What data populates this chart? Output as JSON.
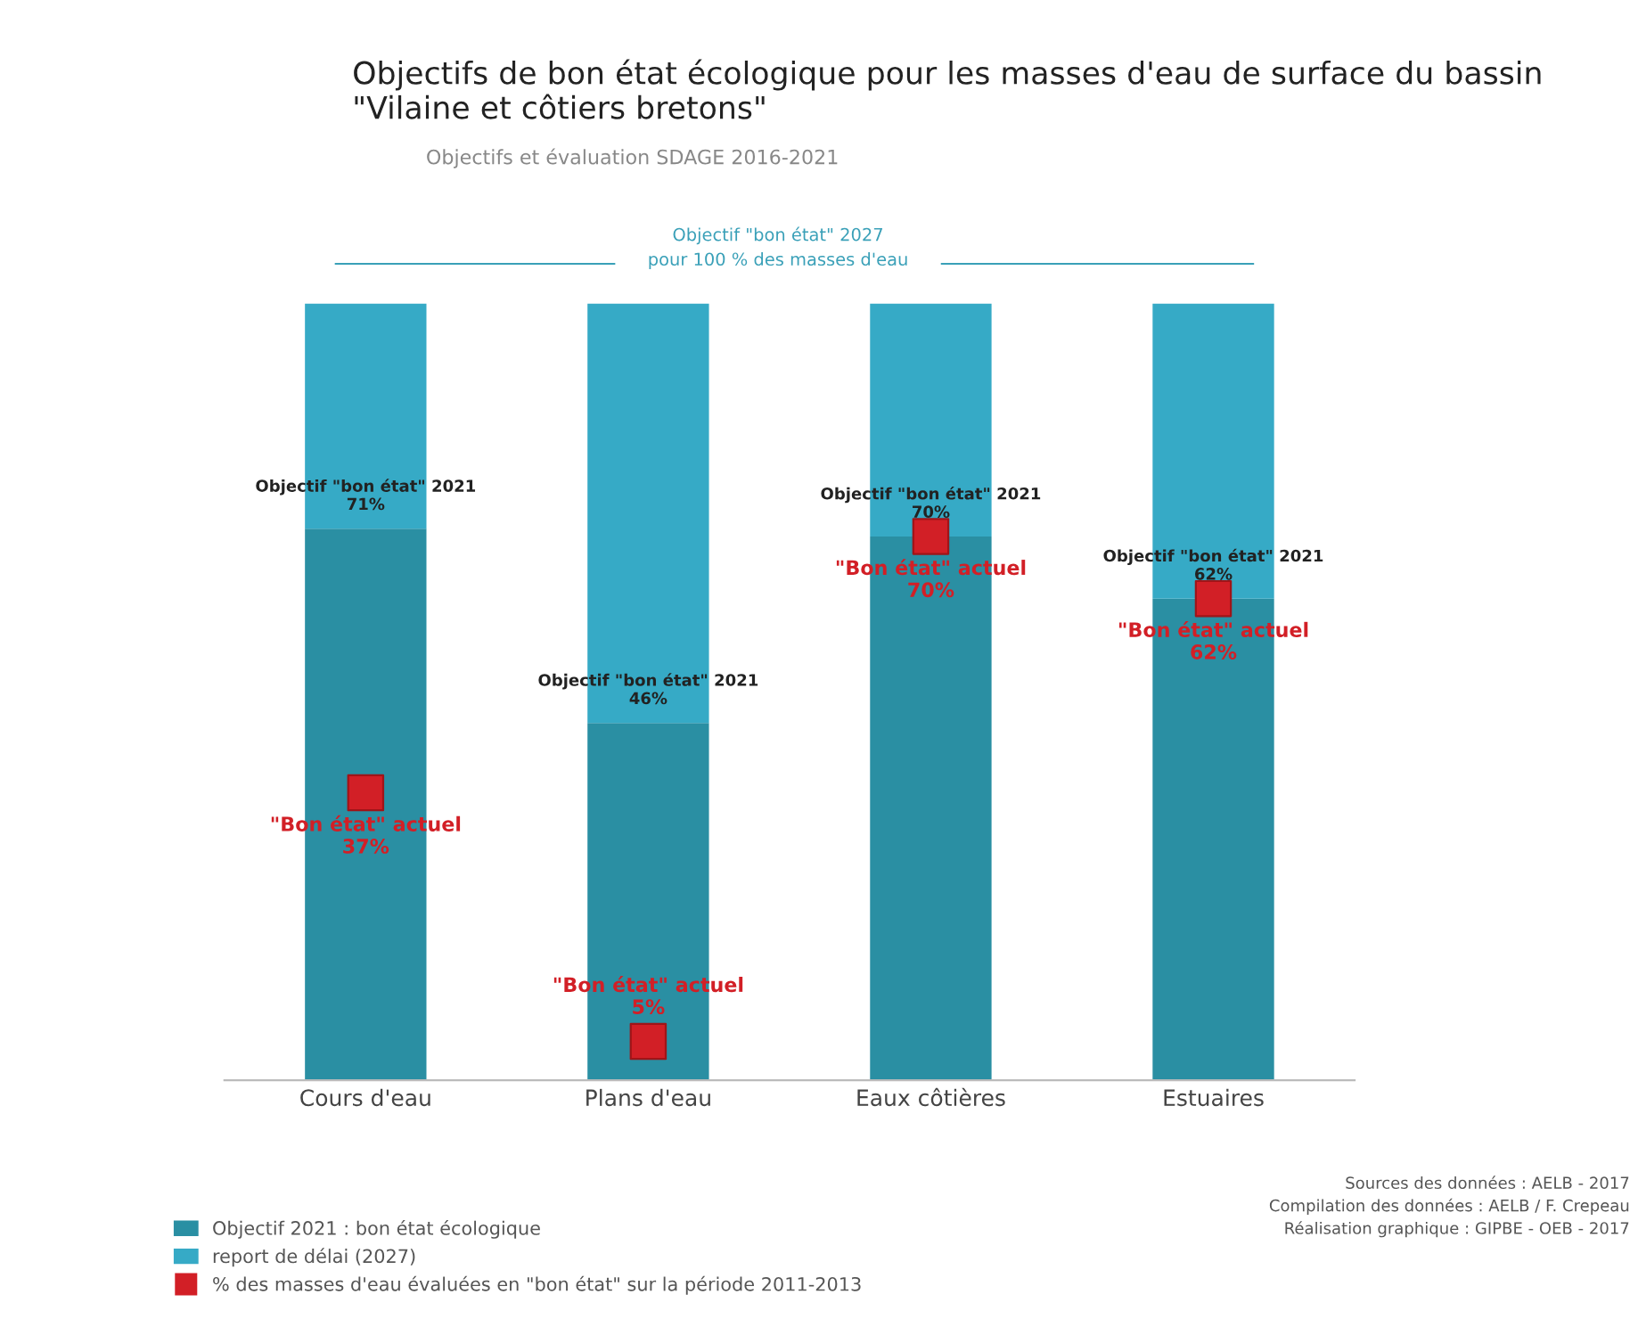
{
  "chart_data": {
    "type": "bar",
    "title": "Objectifs de bon état écologique pour les masses d'eau de surface du bassin\n\"Vilaine et côtiers bretons\"",
    "subtitle": "Objectifs et évaluation SDAGE 2016-2021",
    "categories": [
      "Cours d'eau",
      "Plans d'eau",
      "Eaux côtières",
      "Estuaires"
    ],
    "stacked": true,
    "ylim": [
      0,
      100
    ],
    "tick_labels": "x",
    "grid": false,
    "legend": "bottom left",
    "series": [
      {
        "name": "Objectif 2021 : bon état écologique",
        "color": "#2a8fa3",
        "values": [
          71,
          46,
          70,
          62
        ],
        "value_labels": [
          "Objectif \"bon état\" 2021\n71%",
          "Objectif \"bon état\" 2021\n46%",
          "Objectif \"bon état\" 2021\n70%",
          "Objectif \"bon état\" 2021\n62%"
        ]
      },
      {
        "name": "report de délai (2027)",
        "color": "#36aac6",
        "values": [
          29,
          54,
          30,
          38
        ]
      },
      {
        "name": "% des masses d'eau évaluées en \"bon état\" sur la période 2011-2013",
        "type": "scatter",
        "marker": "square",
        "color": "#d21f26",
        "x": [
          "Cours d'eau",
          "Plans d'eau",
          "Eaux côtières",
          "Estuaires"
        ],
        "values": [
          37,
          5,
          70,
          62
        ],
        "value_labels": [
          "\"Bon état\" actuel\n37%",
          "\"Bon état\" actuel\n5%",
          "\"Bon état\" actuel\n70%",
          "\"Bon état\" actuel\n62%"
        ]
      }
    ],
    "annotations": [
      "Objectif \"bon état\" 2027\npour 100 % des masses d'eau",
      "Sources des données : AELB - 2017\nCompilation des données : AELB / F. Crepeau\nRéalisation graphique : GIPBE - OEB - 2017"
    ]
  }
}
